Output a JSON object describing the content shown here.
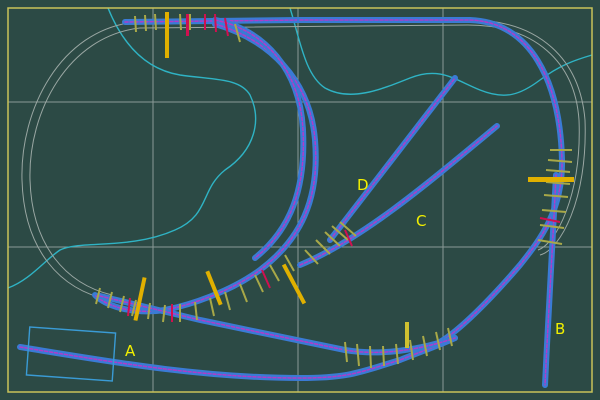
{
  "diagram": {
    "colors": {
      "background": "#2c4a45",
      "frame": "#c9c35a",
      "grid": "#8a9a96",
      "contour": "#2fb3c4",
      "ghost_track": "#9aa7a3",
      "track_outer": "#3a7bd5",
      "track_core": "#b03cc8",
      "tie": "#d01050",
      "tie_alt": "#a8a848",
      "signal": "#e0b000",
      "label": "#f2f000",
      "building": "#3a9bd5"
    },
    "labels": [
      {
        "id": "a",
        "text": "A"
      },
      {
        "id": "b",
        "text": "B"
      },
      {
        "id": "c",
        "text": "C"
      },
      {
        "id": "d",
        "text": "D"
      }
    ]
  }
}
